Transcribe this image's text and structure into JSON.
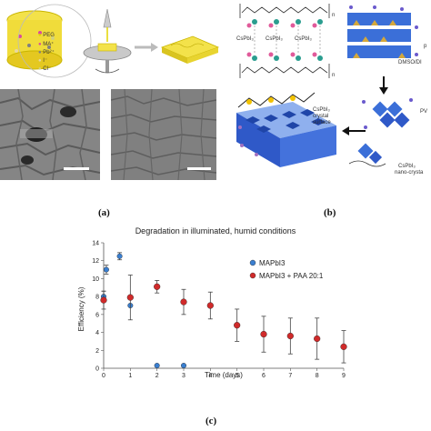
{
  "panel_a": {
    "label": "(a)",
    "legend": [
      {
        "text": "PEG",
        "color": "#d9d400"
      },
      {
        "text": "MA⁺",
        "color": "#d94aa0"
      },
      {
        "text": "Pb²⁺",
        "color": "#808080"
      },
      {
        "text": "I⁻",
        "color": "#e8d8a0"
      },
      {
        "text": "Cl⁻",
        "color": "#d0d080"
      }
    ]
  },
  "panel_b": {
    "label": "(b)",
    "texts": {
      "cspbi3_1": "CsPbI₃",
      "cspbi3_2": "CsPbI₃",
      "cspbi3_3": "CsPbI₃",
      "subscript_n1": "n",
      "subscript_n2": "n",
      "dmso": "DMSO/DI",
      "p_label": "p",
      "pv_label": "PV",
      "crystal_surface_1": "CsPbI₃",
      "crystal_surface_2": "crystal",
      "crystal_surface_3": "surface",
      "nano_1": "CsPbI₃",
      "nano_2": "nano-crysta"
    }
  },
  "panel_c": {
    "label": "(c)"
  },
  "chart_data": {
    "type": "scatter",
    "title": "Degradation in illuminated, humid conditions",
    "xlabel": "Time (days)",
    "ylabel": "Efficiency (%)",
    "xlim": [
      0,
      9
    ],
    "ylim": [
      0,
      14
    ],
    "xticks": [
      0,
      1,
      2,
      3,
      4,
      5,
      6,
      7,
      8,
      9
    ],
    "yticks": [
      0,
      2,
      4,
      6,
      8,
      10,
      12,
      14
    ],
    "legend_position": "right",
    "series": [
      {
        "name": "MAPbI3",
        "color": "#3a7fd0",
        "points": [
          {
            "x": 0.0,
            "y": 8.0,
            "err": 0.6
          },
          {
            "x": 0.1,
            "y": 11.0,
            "err": 0.5
          },
          {
            "x": 0.6,
            "y": 12.5,
            "err": 0.4
          },
          {
            "x": 1.0,
            "y": 7.0,
            "err": 0.0
          },
          {
            "x": 2.0,
            "y": 0.3,
            "err": 0.0
          },
          {
            "x": 3.0,
            "y": 0.3,
            "err": 0.0
          }
        ]
      },
      {
        "name": "MAPbI3 + PAA 20:1",
        "color": "#d02a2a",
        "points": [
          {
            "x": 0.0,
            "y": 7.6,
            "err": 1.0
          },
          {
            "x": 1.0,
            "y": 7.9,
            "err": 2.5
          },
          {
            "x": 2.0,
            "y": 9.1,
            "err": 0.7
          },
          {
            "x": 3.0,
            "y": 7.4,
            "err": 1.4
          },
          {
            "x": 4.0,
            "y": 7.0,
            "err": 1.5
          },
          {
            "x": 5.0,
            "y": 4.8,
            "err": 1.8
          },
          {
            "x": 6.0,
            "y": 3.8,
            "err": 2.0
          },
          {
            "x": 7.0,
            "y": 3.6,
            "err": 2.0
          },
          {
            "x": 8.0,
            "y": 3.3,
            "err": 2.3
          },
          {
            "x": 9.0,
            "y": 2.4,
            "err": 1.8
          }
        ]
      }
    ]
  }
}
